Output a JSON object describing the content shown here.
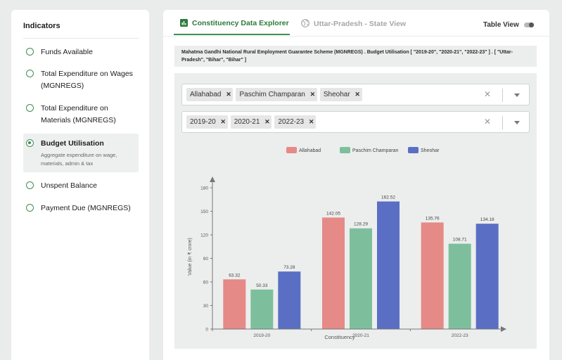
{
  "sidebar": {
    "title": "Indicators",
    "items": [
      {
        "label": "Funds Available"
      },
      {
        "label": "Total Expenditure on Wages (MGNREGS)"
      },
      {
        "label": "Total Expenditure on Materials (MGNREGS)"
      },
      {
        "label": "Budget Utilisation",
        "description": "Aggregate expenditure on wage, materials, admin & tax",
        "selected": true
      },
      {
        "label": "Unspent Balance"
      },
      {
        "label": "Payment Due (MGNREGS)"
      }
    ]
  },
  "tabs": [
    {
      "label": "Constituency Data Explorer",
      "icon": "bar-chart-icon",
      "active": true
    },
    {
      "label": "Uttar-Pradesh - State View",
      "icon": "globe-icon",
      "active": false
    }
  ],
  "table_view": {
    "label": "Table View",
    "enabled": false
  },
  "subtitle": "Mahatma Gandhi National Rural Employment Guarantee Scheme (MGNREGS) . Budget Utilisation [ \"2019-20\", \"2020-21\", \"2022-23\" ] . [ \"Uttar-Pradesh\", \"Bihar\", \"Bihar\" ]",
  "filters": {
    "constituencies": [
      "Allahabad",
      "Paschim Champaran",
      "Sheohar"
    ],
    "years": [
      "2019-20",
      "2020-21",
      "2022-23"
    ]
  },
  "colors": {
    "accent": "#3f8f4f",
    "series": [
      "#e58a87",
      "#7dbf9c",
      "#5a6fc4"
    ]
  },
  "chart_data": {
    "type": "bar",
    "categories": [
      "2019-20",
      "2020-21",
      "2022-23"
    ],
    "series": [
      {
        "name": "Allahabad",
        "values": [
          63.32,
          142.05,
          135.76
        ]
      },
      {
        "name": "Paschim Champaran",
        "values": [
          50.33,
          128.29,
          108.71
        ]
      },
      {
        "name": "Sheohar",
        "values": [
          73.28,
          162.52,
          134.18
        ]
      }
    ],
    "xlabel": "Constituency",
    "ylabel": "Value (in ₹ crore)",
    "ylim": [
      0,
      180
    ],
    "yticks": [
      0,
      30,
      60,
      90,
      120,
      150,
      180
    ],
    "legend": "top-center",
    "grid": false
  }
}
